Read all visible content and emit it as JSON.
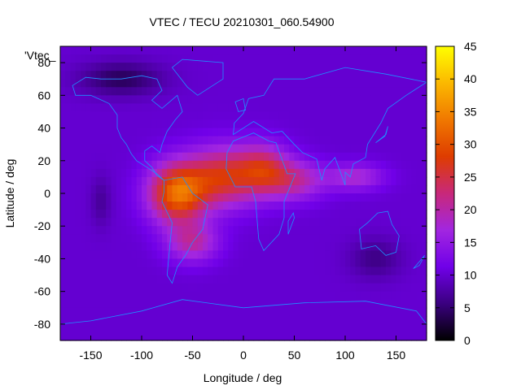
{
  "chart_data": {
    "type": "heatmap",
    "title": "VTEC / TECU 20210301_060.54900",
    "xlabel": "Longitude / deg",
    "ylabel": "Latitude / deg",
    "series_key": "'Vtec_",
    "xlim": [
      -180,
      180
    ],
    "ylim": [
      -90,
      90
    ],
    "x_ticks": [
      -150,
      -100,
      -50,
      0,
      50,
      100,
      150
    ],
    "x_tick_labels": [
      "-150",
      "-100",
      "-50",
      "0",
      "50",
      "100",
      "150"
    ],
    "y_ticks": [
      -80,
      -60,
      -40,
      -20,
      0,
      20,
      40,
      60,
      80
    ],
    "y_tick_labels": [
      "-80",
      "-60",
      "-40",
      "-20",
      "0",
      "20",
      "40",
      "60",
      "80"
    ],
    "colorbar": {
      "range": [
        0,
        45
      ],
      "ticks": [
        0,
        5,
        10,
        15,
        20,
        25,
        30,
        35,
        40,
        45
      ],
      "tick_labels": [
        "0",
        "5",
        "10",
        "15",
        "20",
        "25",
        "30",
        "35",
        "40",
        "45"
      ]
    },
    "background_vtec": 10,
    "features": [
      {
        "lon": -65,
        "lat": 0,
        "sx": 28,
        "sy": 18,
        "amp": 22
      },
      {
        "lon": -20,
        "lat": 10,
        "sx": 35,
        "sy": 18,
        "amp": 16
      },
      {
        "lon": 20,
        "lat": 15,
        "sx": 25,
        "sy": 15,
        "amp": 12
      },
      {
        "lon": 50,
        "lat": 8,
        "sx": 30,
        "sy": 12,
        "amp": 10
      },
      {
        "lon": 110,
        "lat": 10,
        "sx": 28,
        "sy": 8,
        "amp": 8
      },
      {
        "lon": -50,
        "lat": -30,
        "sx": 25,
        "sy": 12,
        "amp": 10
      },
      {
        "lon": -120,
        "lat": 70,
        "sx": 40,
        "sy": 10,
        "amp": -6
      },
      {
        "lon": 130,
        "lat": -40,
        "sx": 25,
        "sy": 12,
        "amp": -4
      },
      {
        "lon": -140,
        "lat": -5,
        "sx": 10,
        "sy": 15,
        "amp": -3
      }
    ]
  },
  "colors": {
    "coastline": "#1e90ff",
    "palette": [
      "#000000",
      "#3a007f",
      "#7000e8",
      "#a226e0",
      "#c8287a",
      "#de3c00",
      "#f07800",
      "#fbb800",
      "#ffff00"
    ]
  }
}
